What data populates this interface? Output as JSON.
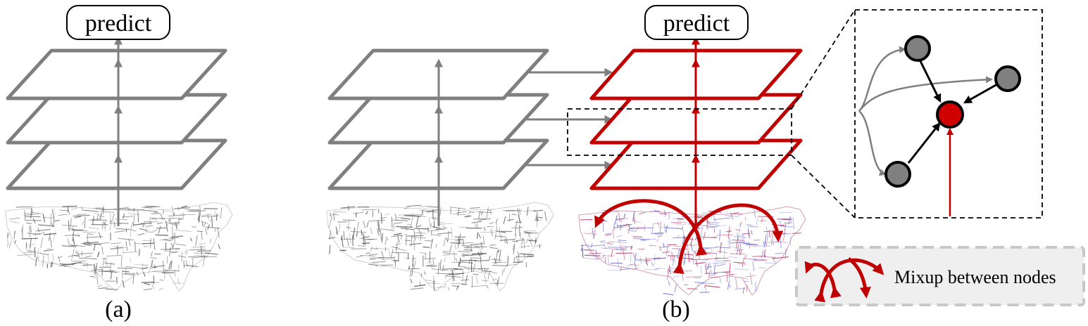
{
  "panel_a": {
    "predict_label": "predict",
    "caption": "(a)"
  },
  "panel_b": {
    "predict_label": "predict",
    "caption": "(b)"
  },
  "legend": {
    "label": "Mixup between nodes"
  },
  "colors": {
    "gray_layer": "#7f7f7f",
    "red_layer": "#c00000",
    "node_gray": "#808080",
    "node_red": "#d00000",
    "map_gray": "#555555",
    "map_blue": "#6a6ad0",
    "map_red": "#b03060",
    "legend_bg": "#efefef",
    "legend_border": "#c8c8c8"
  }
}
